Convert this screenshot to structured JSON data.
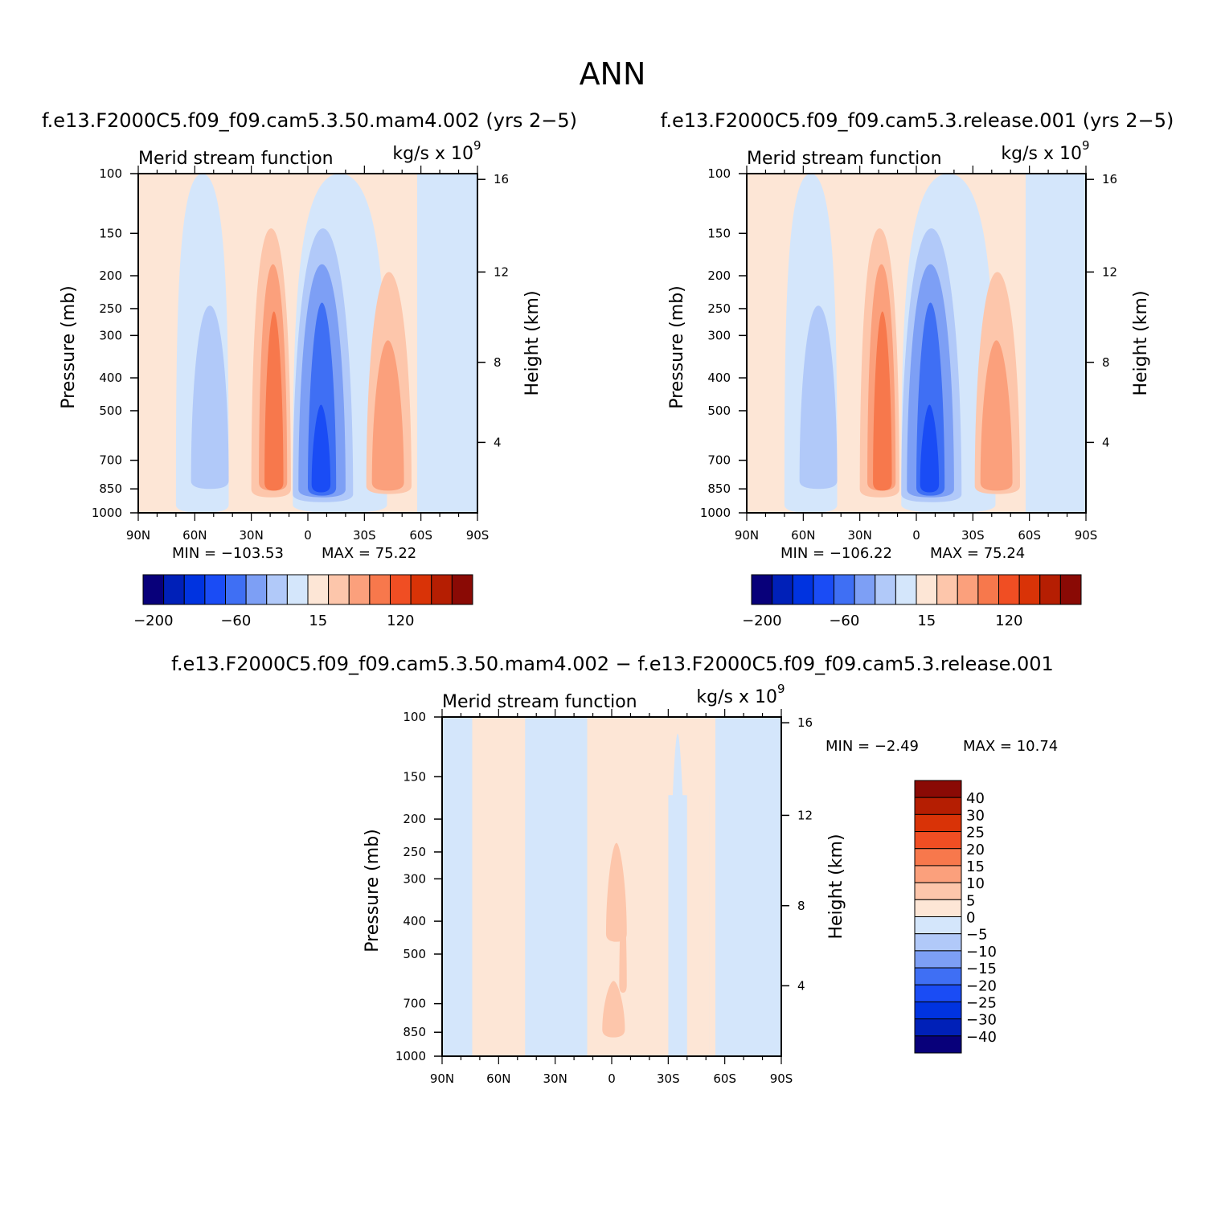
{
  "figure": {
    "title": "ANN",
    "case1_title": "f.e13.F2000C5.f09_f09.cam5.3.50.mam4.002 (yrs 2−5)",
    "case2_title": "f.e13.F2000C5.f09_f09.cam5.3.release.001 (yrs 2−5)",
    "diff_title": "f.e13.F2000C5.f09_f09.cam5.3.50.mam4.002 − f.e13.F2000C5.f09_f09.cam5.3.release.001"
  },
  "chart_data": [
    {
      "id": "case1",
      "type": "contour",
      "title": "Merid stream function",
      "units": "kg/s x 10",
      "units_exponent": "9",
      "xlabel": "",
      "ylabel": "Pressure (mb)",
      "y2label": "Height (km)",
      "x_ticks": [
        "90N",
        "60N",
        "30N",
        "0",
        "30S",
        "60S",
        "90S"
      ],
      "x_range": [
        90,
        -90
      ],
      "y_ticks": [
        100,
        150,
        200,
        250,
        300,
        400,
        500,
        700,
        850,
        1000
      ],
      "y_range": [
        100,
        1000
      ],
      "y_scale": "log",
      "y2_ticks": [
        4,
        8,
        12,
        16
      ],
      "min_label": "MIN = −103.53",
      "max_label": "MAX =   75.22",
      "min": -103.53,
      "max": 75.22,
      "colorbar_labels": [
        "−200",
        "−60",
        "15",
        "120"
      ],
      "colorbar_orientation": "horizontal"
    },
    {
      "id": "case2",
      "type": "contour",
      "title": "Merid stream function",
      "units": "kg/s x 10",
      "units_exponent": "9",
      "xlabel": "",
      "ylabel": "Pressure (mb)",
      "y2label": "Height (km)",
      "x_ticks": [
        "90N",
        "60N",
        "30N",
        "0",
        "30S",
        "60S",
        "90S"
      ],
      "x_range": [
        90,
        -90
      ],
      "y_ticks": [
        100,
        150,
        200,
        250,
        300,
        400,
        500,
        700,
        850,
        1000
      ],
      "y_range": [
        100,
        1000
      ],
      "y_scale": "log",
      "y2_ticks": [
        4,
        8,
        12,
        16
      ],
      "min_label": "MIN = −106.22",
      "max_label": "MAX =   75.24",
      "min": -106.22,
      "max": 75.24,
      "colorbar_labels": [
        "−200",
        "−60",
        "15",
        "120"
      ],
      "colorbar_orientation": "horizontal"
    },
    {
      "id": "diff",
      "type": "contour",
      "title": "Merid stream function",
      "units": "kg/s x 10",
      "units_exponent": "9",
      "xlabel": "",
      "ylabel": "Pressure (mb)",
      "y2label": "Height (km)",
      "x_ticks": [
        "90N",
        "60N",
        "30N",
        "0",
        "30S",
        "60S",
        "90S"
      ],
      "x_range": [
        90,
        -90
      ],
      "y_ticks": [
        100,
        150,
        200,
        250,
        300,
        400,
        500,
        700,
        850,
        1000
      ],
      "y_range": [
        100,
        1000
      ],
      "y_scale": "log",
      "y2_ticks": [
        4,
        8,
        12,
        16
      ],
      "min_label": "MIN =   −2.49",
      "max_label": "MAX =   10.74",
      "min": -2.49,
      "max": 10.74,
      "colorbar_labels": [
        "40",
        "30",
        "25",
        "20",
        "15",
        "10",
        "5",
        "0",
        "−5",
        "−10",
        "−15",
        "−20",
        "−25",
        "−30",
        "−40"
      ],
      "colorbar_orientation": "vertical"
    }
  ],
  "colors": {
    "scale": [
      "#08007a",
      "#0020b8",
      "#0033e0",
      "#1a4cf5",
      "#3f6ff4",
      "#7d9ff5",
      "#b1c9f9",
      "#d4e6fb",
      "#fde6d6",
      "#fdc6ab",
      "#fba07c",
      "#f7784c",
      "#f04e23",
      "#d93307",
      "#b51e02",
      "#8a0a05"
    ]
  }
}
